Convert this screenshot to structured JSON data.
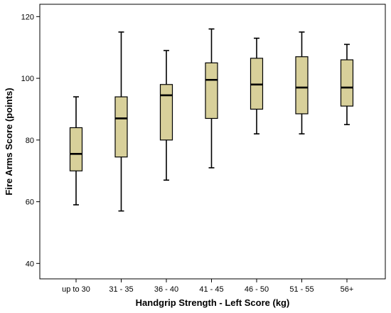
{
  "chart_data": {
    "type": "boxplot",
    "title": "",
    "xlabel": "Handgrip Strength - Left Score (kg)",
    "ylabel": "Fire Arms Score (points)",
    "ylim": [
      35,
      124
    ],
    "yticks": [
      40,
      60,
      80,
      100,
      120
    ],
    "grid": false,
    "categories": [
      "up to 30",
      "31 - 35",
      "36 - 40",
      "41 - 45",
      "46 - 50",
      "51 - 55",
      "56+"
    ],
    "boxes": [
      {
        "min": 59,
        "q1": 70,
        "median": 75.5,
        "q3": 84,
        "max": 94
      },
      {
        "min": 57,
        "q1": 74.5,
        "median": 87,
        "q3": 94,
        "max": 115
      },
      {
        "min": 67,
        "q1": 80,
        "median": 94.5,
        "q3": 98,
        "max": 109
      },
      {
        "min": 71,
        "q1": 87,
        "median": 99.5,
        "q3": 105,
        "max": 116
      },
      {
        "min": 82,
        "q1": 90,
        "median": 98,
        "q3": 106.5,
        "max": 113
      },
      {
        "min": 82,
        "q1": 88.5,
        "median": 97,
        "q3": 107,
        "max": 115
      },
      {
        "min": 85,
        "q1": 91,
        "median": 97,
        "q3": 106,
        "max": 111
      }
    ],
    "colors": {
      "box_fill": "#d8d09a",
      "box_stroke": "#000000",
      "median": "#000000",
      "axis": "#000000"
    }
  }
}
